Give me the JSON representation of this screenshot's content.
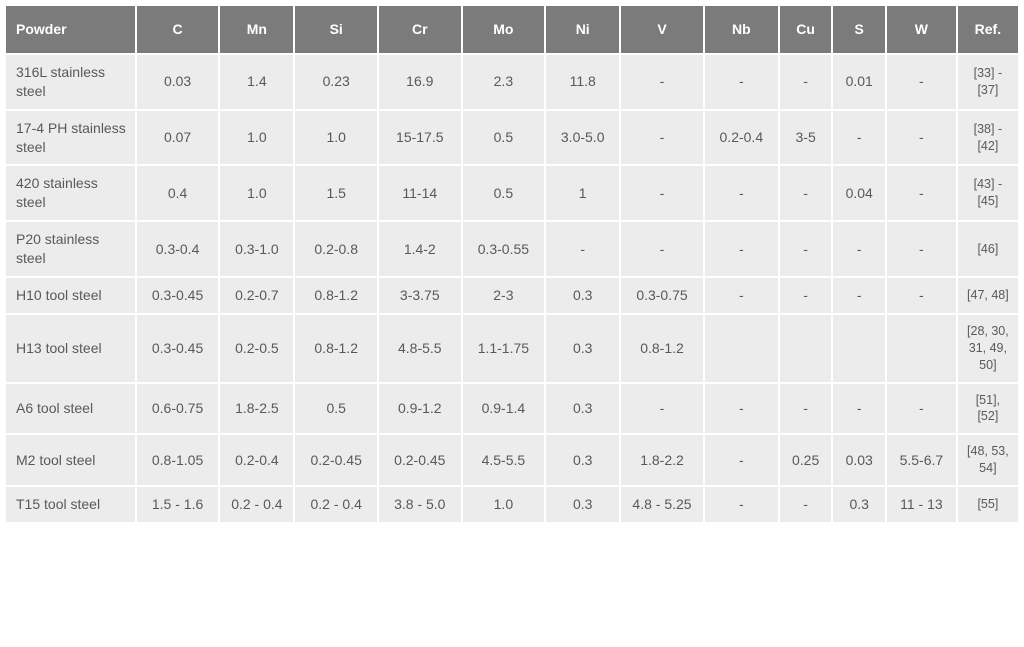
{
  "table": {
    "type": "table",
    "background_color": "#ececec",
    "header_background": "#7b7b7b",
    "header_text_color": "#ffffff",
    "cell_text_color": "#595959",
    "border_color": "#ffffff",
    "font_size_cell": 14,
    "font_size_ref": 12.5,
    "columns": [
      {
        "key": "powder",
        "label": "Powder",
        "width": 122,
        "align": "left"
      },
      {
        "key": "c",
        "label": "C",
        "width": 78,
        "align": "center"
      },
      {
        "key": "mn",
        "label": "Mn",
        "width": 70,
        "align": "center"
      },
      {
        "key": "si",
        "label": "Si",
        "width": 78,
        "align": "center"
      },
      {
        "key": "cr",
        "label": "Cr",
        "width": 78,
        "align": "center"
      },
      {
        "key": "mo",
        "label": "Mo",
        "width": 78,
        "align": "center"
      },
      {
        "key": "ni",
        "label": "Ni",
        "width": 70,
        "align": "center"
      },
      {
        "key": "v",
        "label": "V",
        "width": 78,
        "align": "center"
      },
      {
        "key": "nb",
        "label": "Nb",
        "width": 70,
        "align": "center"
      },
      {
        "key": "cu",
        "label": "Cu",
        "width": 50,
        "align": "center"
      },
      {
        "key": "s",
        "label": "S",
        "width": 50,
        "align": "center"
      },
      {
        "key": "w",
        "label": "W",
        "width": 66,
        "align": "center"
      },
      {
        "key": "ref",
        "label": "Ref.",
        "width": 58,
        "align": "center"
      }
    ],
    "rows": [
      {
        "powder": "316L stainless steel",
        "c": "0.03",
        "mn": "1.4",
        "si": "0.23",
        "cr": "16.9",
        "mo": "2.3",
        "ni": "11.8",
        "v": "-",
        "nb": "-",
        "cu": "-",
        "s": "0.01",
        "w": "-",
        "ref": "[33] - [37]"
      },
      {
        "powder": "17-4 PH stainless steel",
        "c": "0.07",
        "mn": "1.0",
        "si": "1.0",
        "cr": "15-17.5",
        "mo": "0.5",
        "ni": "3.0-5.0",
        "v": "-",
        "nb": "0.2-0.4",
        "cu": "3-5",
        "s": "-",
        "w": "-",
        "ref": "[38] - [42]"
      },
      {
        "powder": "420 stainless steel",
        "c": "0.4",
        "mn": "1.0",
        "si": "1.5",
        "cr": "11-14",
        "mo": "0.5",
        "ni": "1",
        "v": "-",
        "nb": "-",
        "cu": "-",
        "s": "0.04",
        "w": "-",
        "ref": "[43] - [45]"
      },
      {
        "powder": "P20 stainless steel",
        "c": "0.3-0.4",
        "mn": "0.3-1.0",
        "si": "0.2-0.8",
        "cr": "1.4-2",
        "mo": "0.3-0.55",
        "ni": "-",
        "v": "-",
        "nb": "-",
        "cu": "-",
        "s": "-",
        "w": "-",
        "ref": "[46]"
      },
      {
        "powder": "H10 tool steel",
        "c": "0.3-0.45",
        "mn": "0.2-0.7",
        "si": "0.8-1.2",
        "cr": "3-3.75",
        "mo": "2-3",
        "ni": "0.3",
        "v": "0.3-0.75",
        "nb": "-",
        "cu": "-",
        "s": "-",
        "w": "-",
        "ref": "[47, 48]"
      },
      {
        "powder": "H13 tool steel",
        "c": "0.3-0.45",
        "mn": "0.2-0.5",
        "si": "0.8-1.2",
        "cr": "4.8-5.5",
        "mo": "1.1-1.75",
        "ni": "0.3",
        "v": "0.8-1.2",
        "nb": "",
        "cu": "",
        "s": "",
        "w": "",
        "ref": "[28, 30, 31, 49, 50]"
      },
      {
        "powder": "A6 tool steel",
        "c": "0.6-0.75",
        "mn": "1.8-2.5",
        "si": "0.5",
        "cr": "0.9-1.2",
        "mo": "0.9-1.4",
        "ni": "0.3",
        "v": "-",
        "nb": "-",
        "cu": "-",
        "s": "-",
        "w": "-",
        "ref": "[51], [52]"
      },
      {
        "powder": "M2 tool steel",
        "c": "0.8-1.05",
        "mn": "0.2-0.4",
        "si": "0.2-0.45",
        "cr": "0.2-0.45",
        "mo": "4.5-5.5",
        "ni": "0.3",
        "v": "1.8-2.2",
        "nb": "-",
        "cu": "0.25",
        "s": "0.03",
        "w": "5.5-6.7",
        "ref": "[48, 53, 54]"
      },
      {
        "powder": "T15 tool steel",
        "c": "1.5 - 1.6",
        "mn": "0.2 - 0.4",
        "si": "0.2 - 0.4",
        "cr": "3.8 - 5.0",
        "mo": "1.0",
        "ni": "0.3",
        "v": "4.8 - 5.25",
        "nb": "-",
        "cu": "-",
        "s": "0.3",
        "w": "11 - 13",
        "ref": "[55]"
      }
    ]
  }
}
